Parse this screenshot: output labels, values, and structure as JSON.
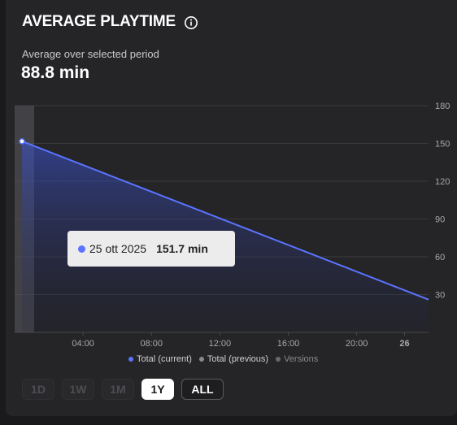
{
  "header": {
    "title": "AVERAGE PLAYTIME",
    "info_icon": "info-circle-icon",
    "subtitle": "Average over selected period",
    "value": "88.8 min"
  },
  "tooltip": {
    "date": "25 ott 2025",
    "value": "151.7 min"
  },
  "legend": [
    {
      "label": "Total (current)",
      "color": "#5b74ff"
    },
    {
      "label": "Total (previous)",
      "color": "#8a8a8e"
    },
    {
      "label": "Versions",
      "color": "#8a8a8e"
    }
  ],
  "ranges": [
    {
      "label": "1D",
      "state": "disabled"
    },
    {
      "label": "1W",
      "state": "disabled"
    },
    {
      "label": "1M",
      "state": "disabled"
    },
    {
      "label": "1Y",
      "state": "active"
    },
    {
      "label": "ALL",
      "state": "enabled"
    }
  ],
  "chart_data": {
    "type": "area",
    "title": "AVERAGE PLAYTIME",
    "series": [
      {
        "name": "Total (current)",
        "color": "#5b74ff",
        "points": [
          {
            "x": 0,
            "y": 151.7
          },
          {
            "x": 12.1,
            "y": 26
          }
        ]
      }
    ],
    "x_ticks": [
      "04:00",
      "08:00",
      "12:00",
      "16:00",
      "20:00",
      "26"
    ],
    "x_tick_values": [
      2,
      4,
      6,
      8,
      10,
      11.4
    ],
    "x_range": [
      0,
      12.1
    ],
    "y_ticks": [
      30,
      60,
      90,
      120,
      150,
      180
    ],
    "ylim": [
      0,
      180
    ],
    "y_axis_position": "right",
    "grid": true,
    "legend_position": "bottom"
  }
}
